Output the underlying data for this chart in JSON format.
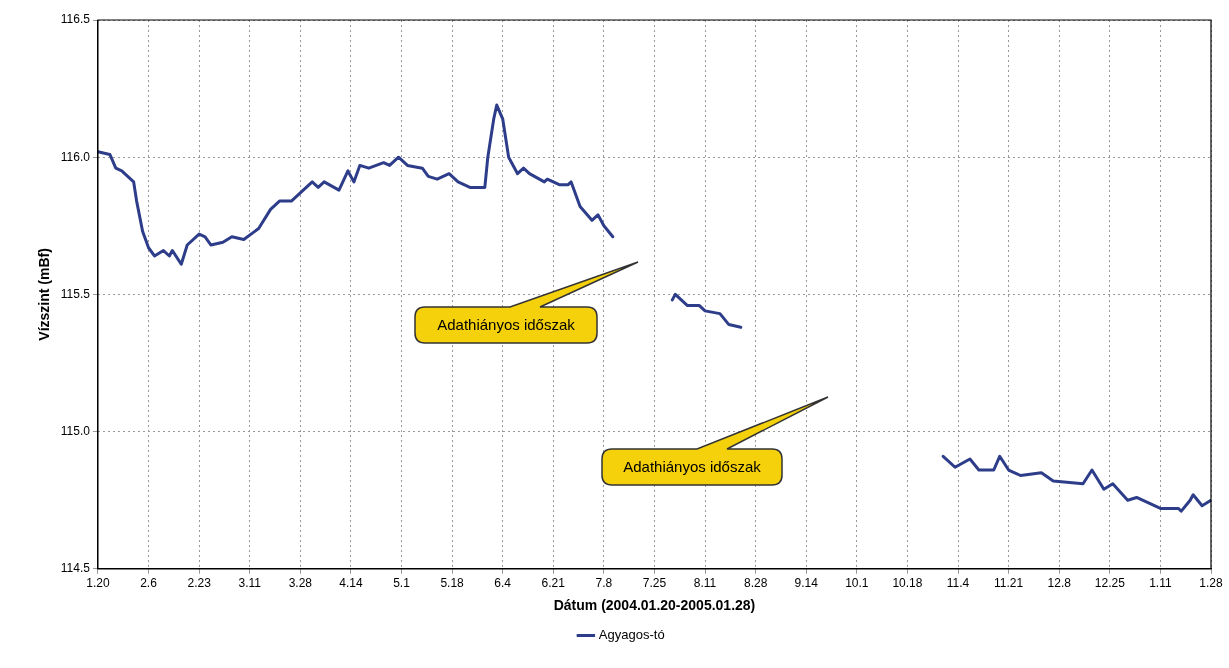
{
  "chart_data": {
    "type": "line",
    "xlabel": "Dátum (2004.01.20-2005.01.28)",
    "ylabel": "Vízszint (mBf)",
    "xlim": [
      "2004-01-20",
      "2005-01-28"
    ],
    "ylim": [
      114.5,
      116.5
    ],
    "xticks": [
      {
        "value": "2004-01-20",
        "label": "1.20"
      },
      {
        "value": "2004-02-06",
        "label": "2.6"
      },
      {
        "value": "2004-02-23",
        "label": "2.23"
      },
      {
        "value": "2004-03-11",
        "label": "3.11"
      },
      {
        "value": "2004-03-28",
        "label": "3.28"
      },
      {
        "value": "2004-04-14",
        "label": "4.14"
      },
      {
        "value": "2004-05-01",
        "label": "5.1"
      },
      {
        "value": "2004-05-18",
        "label": "5.18"
      },
      {
        "value": "2004-06-04",
        "label": "6.4"
      },
      {
        "value": "2004-06-21",
        "label": "6.21"
      },
      {
        "value": "2004-07-08",
        "label": "7.8"
      },
      {
        "value": "2004-07-25",
        "label": "7.25"
      },
      {
        "value": "2004-08-11",
        "label": "8.11"
      },
      {
        "value": "2004-08-28",
        "label": "8.28"
      },
      {
        "value": "2004-09-14",
        "label": "9.14"
      },
      {
        "value": "2004-10-01",
        "label": "10.1"
      },
      {
        "value": "2004-10-18",
        "label": "10.18"
      },
      {
        "value": "2004-11-04",
        "label": "11.4"
      },
      {
        "value": "2004-11-21",
        "label": "11.21"
      },
      {
        "value": "2004-12-08",
        "label": "12.8"
      },
      {
        "value": "2004-12-25",
        "label": "12.25"
      },
      {
        "value": "2005-01-11",
        "label": "1.11"
      },
      {
        "value": "2005-01-28",
        "label": "1.28"
      }
    ],
    "yticks": [
      {
        "value": 114.5,
        "label": "114.5"
      },
      {
        "value": 115,
        "label": "115.0"
      },
      {
        "value": 115.5,
        "label": "115.5"
      },
      {
        "value": 116,
        "label": "116.0"
      },
      {
        "value": 116.5,
        "label": "116.5"
      }
    ],
    "grid": true,
    "legend": "bottom",
    "marker": "none",
    "line_style": "solid",
    "annotations": [
      "Adathiányos időszak",
      "Adathiányos időszak"
    ],
    "series": [
      {
        "name": "Agyagos-tó",
        "color": "#2e3d8a",
        "x": [
          "2004-01-20",
          "2004-01-24",
          "2004-01-26",
          "2004-01-28",
          "2004-02-01",
          "2004-02-02",
          "2004-02-04",
          "2004-02-06",
          "2004-02-08",
          "2004-02-11",
          "2004-02-13",
          "2004-02-14",
          "2004-02-17",
          "2004-02-19",
          "2004-02-23",
          "2004-02-25",
          "2004-02-27",
          "2004-03-02",
          "2004-03-05",
          "2004-03-09",
          "2004-03-14",
          "2004-03-18",
          "2004-03-21",
          "2004-03-25",
          "2004-03-29",
          "2004-04-01",
          "2004-04-03",
          "2004-04-05",
          "2004-04-10",
          "2004-04-13",
          "2004-04-15",
          "2004-04-17",
          "2004-04-20",
          "2004-04-25",
          "2004-04-27",
          "2004-04-30",
          "2004-05-03",
          "2004-05-08",
          "2004-05-10",
          "2004-05-13",
          "2004-05-17",
          "2004-05-20",
          "2004-05-24",
          "2004-05-29",
          "2004-05-30",
          "2004-06-01",
          "2004-06-02",
          "2004-06-04",
          "2004-06-06",
          "2004-06-09",
          "2004-06-11",
          "2004-06-13",
          "2004-06-18",
          "2004-06-19",
          "2004-06-23",
          "2004-06-26",
          "2004-06-27",
          "2004-06-30",
          "2004-07-04",
          "2004-07-06",
          "2004-07-08",
          "2004-07-11",
          "2004-07-20",
          "2004-07-31",
          "2004-08-01",
          "2004-08-05",
          "2004-08-09",
          "2004-08-11",
          "2004-08-16",
          "2004-08-19",
          "2004-08-23",
          "2004-10-01",
          "2004-10-30",
          "2004-11-03",
          "2004-11-08",
          "2004-11-11",
          "2004-11-16",
          "2004-11-18",
          "2004-11-21",
          "2004-11-25",
          "2004-12-02",
          "2004-12-06",
          "2004-12-16",
          "2004-12-19",
          "2004-12-23",
          "2004-12-26",
          "2004-12-31",
          "2005-01-03",
          "2005-01-11",
          "2005-01-17",
          "2005-01-18",
          "2005-01-21",
          "2005-01-22",
          "2005-01-25",
          "2005-01-28"
        ],
        "values": [
          116.02,
          116.01,
          115.96,
          115.95,
          115.91,
          115.84,
          115.73,
          115.67,
          115.64,
          115.66,
          115.64,
          115.66,
          115.61,
          115.68,
          115.72,
          115.71,
          115.68,
          115.69,
          115.71,
          115.7,
          115.74,
          115.81,
          115.84,
          115.84,
          115.88,
          115.91,
          115.89,
          115.91,
          115.88,
          115.95,
          115.91,
          115.97,
          115.96,
          115.98,
          115.97,
          116.0,
          115.97,
          115.96,
          115.93,
          115.92,
          115.94,
          115.91,
          115.89,
          115.89,
          116.0,
          116.14,
          116.19,
          116.14,
          116.0,
          115.94,
          115.96,
          115.94,
          115.91,
          115.92,
          115.9,
          115.9,
          115.91,
          115.82,
          115.77,
          115.79,
          115.75,
          115.71,
          null,
          115.48,
          115.5,
          115.46,
          115.46,
          115.44,
          115.43,
          115.39,
          115.38,
          null,
          114.91,
          114.87,
          114.9,
          114.86,
          114.86,
          114.91,
          114.86,
          114.84,
          114.85,
          114.82,
          114.81,
          114.86,
          114.79,
          114.81,
          114.75,
          114.76,
          114.72,
          114.72,
          114.71,
          114.75,
          114.77,
          114.73,
          114.75
        ]
      }
    ]
  }
}
